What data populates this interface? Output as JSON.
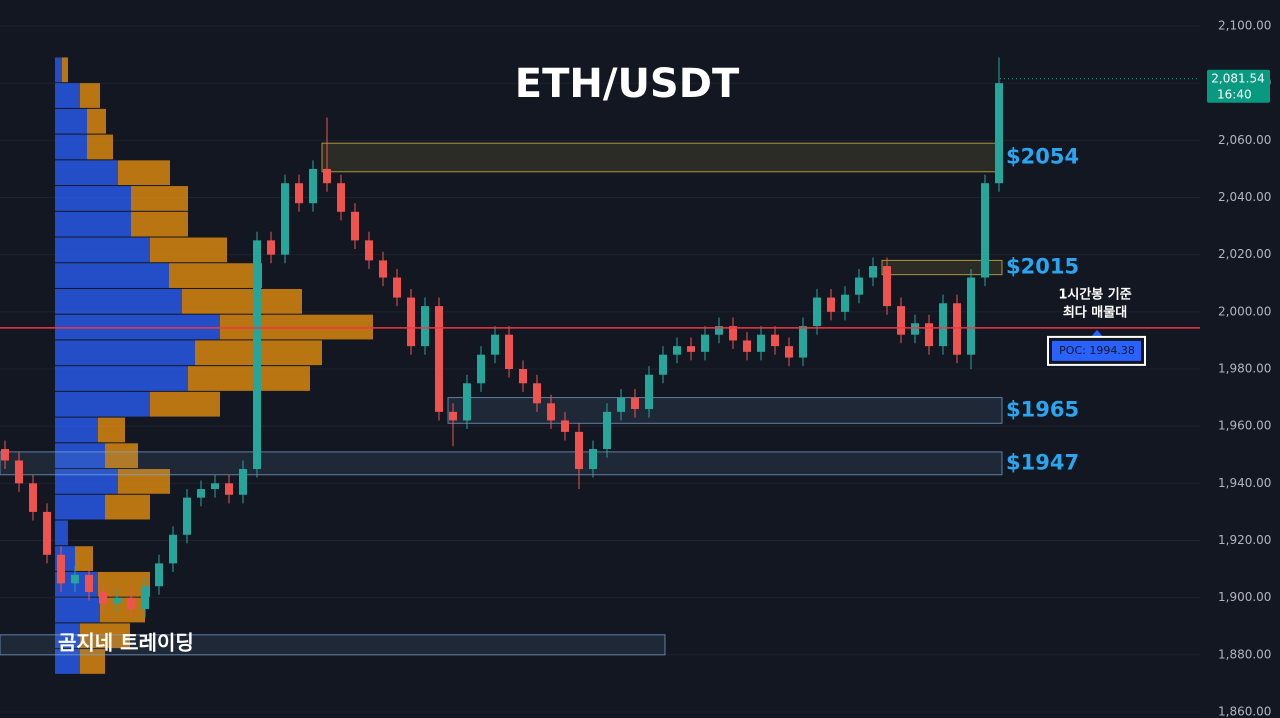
{
  "chart_data": {
    "type": "candlestick",
    "title": "ETH/USDT",
    "watermark": "곰지네 트레이딩",
    "annotation": [
      "1시간봉 기준",
      "최다 매물대"
    ],
    "up_color": "#26a69a",
    "down_color": "#ef5350",
    "ylim": [
      1860,
      2100
    ],
    "yticks": [
      {
        "value": 2100,
        "label": "2,100.00"
      },
      {
        "value": 2080,
        "label": "2,080.00"
      },
      {
        "value": 2060,
        "label": "2,060.00"
      },
      {
        "value": 2040,
        "label": "2,040.00"
      },
      {
        "value": 2020,
        "label": "2,020.00"
      },
      {
        "value": 2000,
        "label": "2,000.00"
      },
      {
        "value": 1980,
        "label": "1,980.00"
      },
      {
        "value": 1960,
        "label": "1,960.00"
      },
      {
        "value": 1940,
        "label": "1,940.00"
      },
      {
        "value": 1920,
        "label": "1,920.00"
      },
      {
        "value": 1900,
        "label": "1,900.00"
      },
      {
        "value": 1880,
        "label": "1,880.00"
      },
      {
        "value": 1860,
        "label": "1,860.00"
      }
    ],
    "grid": true,
    "open": [
      1952,
      1948,
      1940,
      1930,
      1915,
      1905,
      1908,
      1902,
      1898,
      1900,
      1896,
      1904,
      1912,
      1922,
      1935,
      1938,
      1940,
      1936,
      1945,
      2025,
      2020,
      2045,
      2038,
      2050,
      2045,
      2035,
      2025,
      2018,
      2012,
      2005,
      1988,
      2002,
      1965,
      1962,
      1975,
      1985,
      1992,
      1980,
      1975,
      1968,
      1962,
      1958,
      1945,
      1952,
      1965,
      1970,
      1966,
      1978,
      1985,
      1988,
      1986,
      1992,
      1995,
      1990,
      1986,
      1992,
      1988,
      1984,
      1995,
      2005,
      2000,
      2006,
      2012,
      2016,
      2002,
      1992,
      1996,
      1988,
      2003,
      1985,
      2012,
      2045
    ],
    "high": [
      1955,
      1951,
      1943,
      1933,
      1918,
      1911,
      1911,
      1905,
      1903,
      1903,
      1907,
      1915,
      1925,
      1938,
      1941,
      1943,
      1943,
      1948,
      2028,
      2028,
      2048,
      2048,
      2053,
      2068,
      2048,
      2038,
      2028,
      2021,
      2015,
      2008,
      2005,
      2005,
      1968,
      1978,
      1988,
      1995,
      1995,
      1983,
      1978,
      1971,
      1965,
      1961,
      1955,
      1968,
      1973,
      1973,
      1981,
      1988,
      1991,
      1991,
      1995,
      1998,
      1998,
      1993,
      1995,
      1995,
      1991,
      1998,
      2008,
      2008,
      2009,
      2015,
      2019,
      2019,
      2005,
      1999,
      1999,
      2006,
      2006,
      2015,
      2048,
      2089
    ],
    "low": [
      1945,
      1937,
      1927,
      1912,
      1902,
      1902,
      1899,
      1895,
      1895,
      1893,
      1893,
      1901,
      1909,
      1919,
      1932,
      1935,
      1933,
      1933,
      1942,
      2017,
      2017,
      2035,
      2035,
      2042,
      2032,
      2022,
      2015,
      2009,
      2002,
      1985,
      1985,
      1962,
      1953,
      1959,
      1972,
      1982,
      1977,
      1972,
      1965,
      1959,
      1955,
      1938,
      1942,
      1949,
      1962,
      1963,
      1963,
      1975,
      1982,
      1983,
      1983,
      1989,
      1987,
      1983,
      1983,
      1985,
      1981,
      1981,
      1992,
      1997,
      1997,
      2003,
      2009,
      1999,
      1989,
      1989,
      1985,
      1985,
      1982,
      1980,
      2009,
      2042
    ],
    "close": [
      1948,
      1940,
      1930,
      1915,
      1905,
      1908,
      1902,
      1898,
      1900,
      1896,
      1904,
      1912,
      1922,
      1935,
      1938,
      1940,
      1936,
      1945,
      2025,
      2020,
      2045,
      2038,
      2050,
      2045,
      2035,
      2025,
      2018,
      2012,
      2005,
      1988,
      2002,
      1965,
      1962,
      1975,
      1985,
      1992,
      1980,
      1975,
      1968,
      1962,
      1958,
      1945,
      1952,
      1965,
      1970,
      1966,
      1978,
      1985,
      1988,
      1986,
      1992,
      1995,
      1990,
      1986,
      1992,
      1988,
      1984,
      1995,
      2005,
      2000,
      2006,
      2012,
      2016,
      2002,
      1992,
      1996,
      1988,
      2003,
      1985,
      2012,
      2045,
      2080
    ],
    "volume_profile": {
      "bins": [
        1873,
        1882,
        1891,
        1900,
        1909,
        1918,
        1927,
        1936,
        1945,
        1954,
        1963,
        1972,
        1981,
        1990,
        1999,
        2008,
        2017,
        2026,
        2035,
        2044,
        2053,
        2062,
        2071,
        2080,
        2089
      ],
      "buy": [
        25,
        25,
        45,
        43,
        20,
        13,
        50,
        63,
        50,
        43,
        95,
        133,
        140,
        165,
        127,
        114,
        95,
        76,
        76,
        63,
        32,
        32,
        25,
        7
      ],
      "sell": [
        25,
        50,
        45,
        52,
        18,
        0,
        45,
        52,
        33,
        27,
        70,
        122,
        127,
        153,
        120,
        93,
        77,
        57,
        57,
        52,
        26,
        19,
        20,
        6
      ],
      "buy_color": "#2962ff",
      "sell_color": "#f0950c"
    },
    "poc": {
      "value": 1994.38,
      "label": "POC: 1994.38"
    },
    "zones": [
      {
        "low": 2049,
        "high": 2059,
        "start": 23,
        "label": "$2054",
        "color": "#e6c84a"
      },
      {
        "low": 2013,
        "high": 2018,
        "start": 63,
        "label": "$2015",
        "color": "#e6c84a"
      },
      {
        "low": 1961,
        "high": 1970,
        "start": 32,
        "label": "$1965",
        "color": "#7fa8d8"
      },
      {
        "low": 1943,
        "high": 1951,
        "start": 0,
        "label": "$1947",
        "color": "#7fa8d8"
      },
      {
        "low": 1880,
        "high": 1887,
        "start": 0,
        "end": 47,
        "color": "#7fa8d8"
      }
    ],
    "last_price": {
      "value": 2081.54,
      "label": "2,081.54",
      "time": "16:40"
    }
  }
}
